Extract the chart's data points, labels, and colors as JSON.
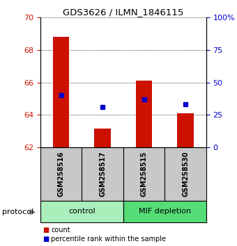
{
  "title": "GDS3626 / ILMN_1846115",
  "samples": [
    "GSM258516",
    "GSM258517",
    "GSM258515",
    "GSM258530"
  ],
  "bar_color": "#CC1100",
  "dot_color": "#0000CC",
  "ylim_left": [
    62,
    70
  ],
  "ylim_right": [
    0,
    100
  ],
  "yticks_left": [
    62,
    64,
    66,
    68,
    70
  ],
  "yticks_right": [
    0,
    25,
    50,
    75,
    100
  ],
  "ytick_labels_right": [
    "0",
    "25",
    "50",
    "75",
    "100%"
  ],
  "red_bar_tops": [
    68.8,
    63.15,
    66.1,
    64.1
  ],
  "blue_dot_percentile": [
    40,
    31,
    37,
    33
  ],
  "legend_count_label": "count",
  "legend_percentile_label": "percentile rank within the sample",
  "protocol_label": "protocol",
  "group_label_control": "control",
  "group_label_mif": "MIF depletion",
  "control_color": "#AAEEBB",
  "mif_color": "#55DD77",
  "sample_box_color": "#C8C8C8"
}
